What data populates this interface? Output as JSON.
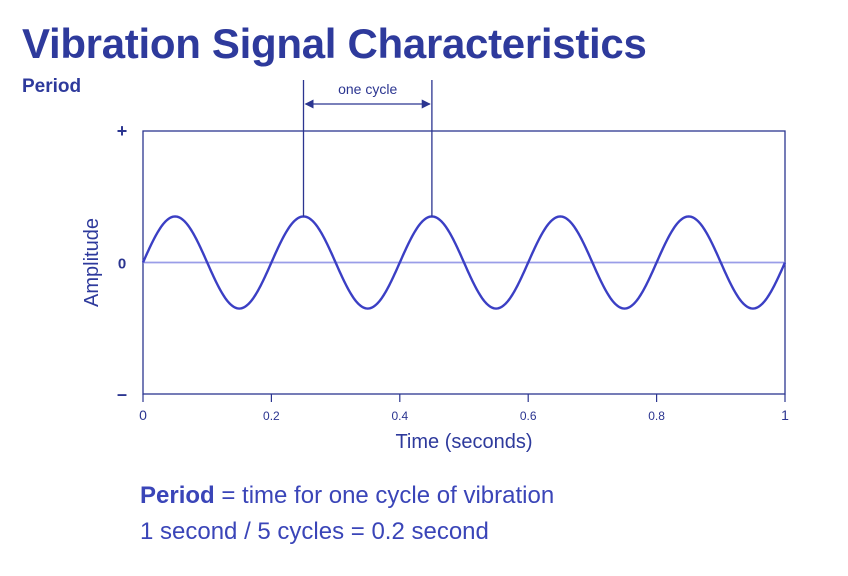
{
  "title": "Vibration Signal Characteristics",
  "subtitle": "Period",
  "colors": {
    "accent": "#2e3a9c",
    "wave": "#3b3fc4",
    "zero_line": "#9a9de8",
    "axis": "#2b3590"
  },
  "chart_data": {
    "type": "line",
    "title": "",
    "xlabel": "Time (seconds)",
    "ylabel": "Amplitude",
    "xlim": [
      0,
      1
    ],
    "ylim": [
      -1,
      1
    ],
    "x_ticks": [
      {
        "value": 0,
        "label": "0"
      },
      {
        "value": 0.2,
        "label": "0.2"
      },
      {
        "value": 0.4,
        "label": "0.4"
      },
      {
        "value": 0.6,
        "label": "0.6"
      },
      {
        "value": 0.8,
        "label": "0.8"
      },
      {
        "value": 1,
        "label": "1"
      }
    ],
    "y_ticks": [
      {
        "value": 1,
        "label": "+"
      },
      {
        "value": 0,
        "label": "0"
      },
      {
        "value": -1,
        "label": "–"
      }
    ],
    "series": [
      {
        "function": "sine",
        "frequency_hz": 5,
        "amplitude": 0.35,
        "phase": 0
      }
    ],
    "annotation": {
      "label": "one cycle",
      "x_start": 0.25,
      "x_end": 0.45
    },
    "grid": false,
    "legend": "none"
  },
  "caption": {
    "line1_bold": "Period",
    "line1_rest": " = time for one cycle of vibration",
    "line2": "1 second / 5 cycles = 0.2 second"
  }
}
